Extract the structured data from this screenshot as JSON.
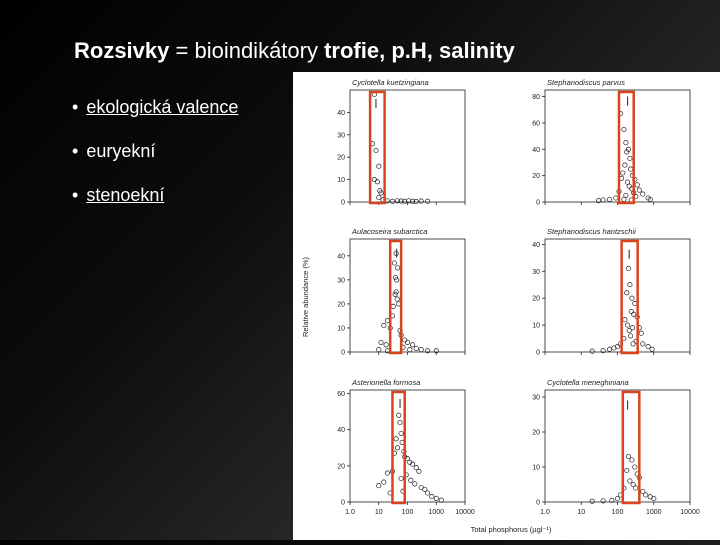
{
  "slide": {
    "title": {
      "part1": "Rozsivky",
      "part2": " = bioindikátory ",
      "part3": "trofie, p.H, salinity"
    },
    "bullets": [
      {
        "marker": "•",
        "text": "ekologická valence",
        "underlined": true
      },
      {
        "marker": "•",
        "text": "euryekní",
        "underlined": false
      },
      {
        "marker": "•",
        "text": "stenoekní",
        "underlined": true
      }
    ]
  },
  "colors": {
    "background_dark": "#000000",
    "background_light": "#3d3d3d",
    "title_text": "#ffffff",
    "figure_background": "#ffffff",
    "highlight_box": "#d9441c",
    "plot_ink": "#222222"
  },
  "chart_data": {
    "type": "scatter",
    "xlabel": "Total phosphorus (µgl⁻¹)",
    "ylabel": "Relative abundance (%)",
    "x_scale": "log",
    "xlim": [
      1,
      10000
    ],
    "x_ticks": [
      "1.0",
      "10",
      "100",
      "1000",
      "10000"
    ],
    "panels": [
      {
        "name": "Cyclotella kuetzingiana",
        "ylim": [
          0,
          50
        ],
        "yticks": [
          0,
          10,
          20,
          30,
          40
        ],
        "highlight_x_range": [
          5,
          16
        ],
        "bar": {
          "x": 8,
          "y": 46
        },
        "points": [
          [
            7,
            48
          ],
          [
            6,
            26
          ],
          [
            8,
            23
          ],
          [
            10,
            16
          ],
          [
            7,
            10
          ],
          [
            9,
            9
          ],
          [
            10,
            2
          ],
          [
            11,
            5
          ],
          [
            12,
            4
          ],
          [
            14,
            1
          ],
          [
            20,
            0.5
          ],
          [
            30,
            0.3
          ],
          [
            45,
            0.5
          ],
          [
            60,
            0.4
          ],
          [
            80,
            0.3
          ],
          [
            110,
            0.5
          ],
          [
            150,
            0.3
          ],
          [
            200,
            0.2
          ],
          [
            300,
            0.4
          ],
          [
            500,
            0.3
          ]
        ]
      },
      {
        "name": "Stephanodiscus parvus",
        "ylim": [
          0,
          85
        ],
        "yticks": [
          0,
          20,
          40,
          60,
          80
        ],
        "highlight_x_range": [
          110,
          280
        ],
        "bar": {
          "x": 190,
          "y": 80
        },
        "points": [
          [
            120,
            67
          ],
          [
            150,
            55
          ],
          [
            170,
            45
          ],
          [
            180,
            38
          ],
          [
            200,
            40
          ],
          [
            220,
            33
          ],
          [
            160,
            28
          ],
          [
            230,
            25
          ],
          [
            140,
            22
          ],
          [
            260,
            20
          ],
          [
            130,
            18
          ],
          [
            190,
            15
          ],
          [
            300,
            17
          ],
          [
            210,
            12
          ],
          [
            250,
            10
          ],
          [
            350,
            13
          ],
          [
            400,
            9
          ],
          [
            110,
            8
          ],
          [
            280,
            7
          ],
          [
            170,
            5
          ],
          [
            320,
            4
          ],
          [
            500,
            6
          ],
          [
            90,
            3
          ],
          [
            60,
            2
          ],
          [
            40,
            1.5
          ],
          [
            30,
            1
          ],
          [
            700,
            3
          ],
          [
            800,
            2
          ],
          [
            150,
            2
          ],
          [
            240,
            1.5
          ]
        ]
      },
      {
        "name": "Aulacoseira subarctica",
        "ylim": [
          0,
          47
        ],
        "yticks": [
          0,
          10,
          20,
          30,
          40
        ],
        "highlight_x_range": [
          25,
          60
        ],
        "bar": {
          "x": 42,
          "y": 43
        },
        "points": [
          [
            40,
            41
          ],
          [
            35,
            37
          ],
          [
            45,
            35
          ],
          [
            38,
            31
          ],
          [
            42,
            30
          ],
          [
            40,
            25
          ],
          [
            37,
            24
          ],
          [
            44,
            22
          ],
          [
            50,
            20
          ],
          [
            32,
            19
          ],
          [
            30,
            15
          ],
          [
            20,
            13
          ],
          [
            15,
            11
          ],
          [
            25,
            10
          ],
          [
            55,
            9
          ],
          [
            60,
            7
          ],
          [
            80,
            5
          ],
          [
            100,
            4
          ],
          [
            150,
            3
          ],
          [
            200,
            1.5
          ],
          [
            300,
            1
          ],
          [
            500,
            0.5
          ],
          [
            1000,
            0.5
          ],
          [
            12,
            4
          ],
          [
            18,
            3
          ],
          [
            70,
            2
          ],
          [
            120,
            1
          ],
          [
            10,
            1
          ],
          [
            20,
            0.5
          ]
        ]
      },
      {
        "name": "Stephanodiscus hantzschii",
        "ylim": [
          0,
          42
        ],
        "yticks": [
          0,
          10,
          20,
          30,
          40
        ],
        "highlight_x_range": [
          130,
          360
        ],
        "bar": {
          "x": 210,
          "y": 38
        },
        "points": [
          [
            200,
            31
          ],
          [
            220,
            25
          ],
          [
            180,
            22
          ],
          [
            250,
            20
          ],
          [
            300,
            18
          ],
          [
            240,
            15
          ],
          [
            280,
            14
          ],
          [
            350,
            13
          ],
          [
            160,
            12
          ],
          [
            190,
            10
          ],
          [
            260,
            9
          ],
          [
            400,
            9
          ],
          [
            450,
            7
          ],
          [
            230,
            6
          ],
          [
            150,
            5
          ],
          [
            330,
            4
          ],
          [
            120,
            3
          ],
          [
            100,
            2
          ],
          [
            80,
            1.5
          ],
          [
            60,
            1
          ],
          [
            40,
            0.5
          ],
          [
            20,
            0.3
          ],
          [
            500,
            3
          ],
          [
            700,
            2
          ],
          [
            900,
            1
          ],
          [
            210,
            8
          ],
          [
            270,
            3
          ]
        ]
      },
      {
        "name": "Asterionella formosa",
        "ylim": [
          0,
          62
        ],
        "yticks": [
          0,
          20,
          40,
          60
        ],
        "highlight_x_range": [
          30,
          80
        ],
        "bar": {
          "x": 55,
          "y": 57
        },
        "points": [
          [
            50,
            48
          ],
          [
            55,
            44
          ],
          [
            60,
            38
          ],
          [
            40,
            35
          ],
          [
            65,
            33
          ],
          [
            45,
            30
          ],
          [
            75,
            28
          ],
          [
            35,
            27
          ],
          [
            80,
            25
          ],
          [
            100,
            24
          ],
          [
            120,
            22
          ],
          [
            150,
            21
          ],
          [
            200,
            19
          ],
          [
            250,
            17
          ],
          [
            30,
            17
          ],
          [
            20,
            16
          ],
          [
            15,
            11
          ],
          [
            10,
            9
          ],
          [
            90,
            15
          ],
          [
            60,
            13
          ],
          [
            130,
            12
          ],
          [
            180,
            10
          ],
          [
            300,
            8
          ],
          [
            400,
            7
          ],
          [
            500,
            5
          ],
          [
            700,
            3
          ],
          [
            1000,
            2
          ],
          [
            1500,
            1
          ],
          [
            25,
            5
          ],
          [
            70,
            6
          ]
        ]
      },
      {
        "name": "Cyclotella meneghiniana",
        "ylim": [
          0,
          32
        ],
        "yticks": [
          0,
          10,
          20,
          30
        ],
        "highlight_x_range": [
          140,
          400
        ],
        "bar": {
          "x": 190,
          "y": 29
        },
        "points": [
          [
            200,
            13
          ],
          [
            250,
            12
          ],
          [
            300,
            10
          ],
          [
            180,
            9
          ],
          [
            350,
            8
          ],
          [
            400,
            7
          ],
          [
            220,
            6
          ],
          [
            270,
            5
          ],
          [
            150,
            4
          ],
          [
            320,
            4
          ],
          [
            500,
            3
          ],
          [
            600,
            2
          ],
          [
            800,
            1.5
          ],
          [
            1000,
            1
          ],
          [
            120,
            2
          ],
          [
            100,
            1
          ],
          [
            70,
            0.5
          ],
          [
            40,
            0.3
          ],
          [
            20,
            0.2
          ]
        ]
      }
    ]
  }
}
